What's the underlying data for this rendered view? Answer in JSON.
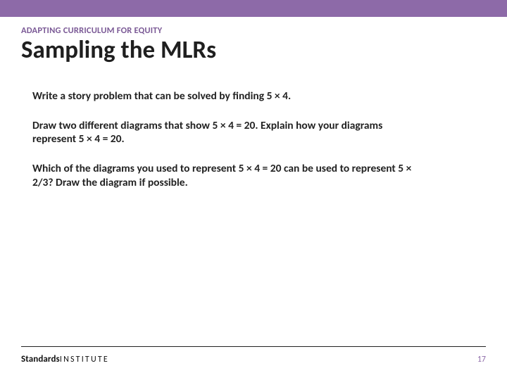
{
  "colors": {
    "accent": "#8d6aa8",
    "kicker": "#7b5a96",
    "title": "#1f1f1f",
    "body_text": "#222222",
    "divider": "#222222",
    "page_num": "#8d6aa8",
    "background": "#ffffff"
  },
  "header": {
    "kicker": "ADAPTING CURRICULUM FOR EQUITY",
    "title": "Sampling the MLRs"
  },
  "body": {
    "p1": "Write a story problem that can be solved by finding 5 × 4.",
    "p2": "Draw two different diagrams that show 5 × 4 = 20.  Explain how your diagrams represent 5 × 4 = 20.",
    "p3": "Which of the diagrams you used to represent 5 × 4 = 20 can be used to represent 5 × 2/3? Draw the diagram if possible."
  },
  "footer": {
    "brand_bold": "Standards",
    "brand_light": "INSTITUTE",
    "page": "17"
  }
}
